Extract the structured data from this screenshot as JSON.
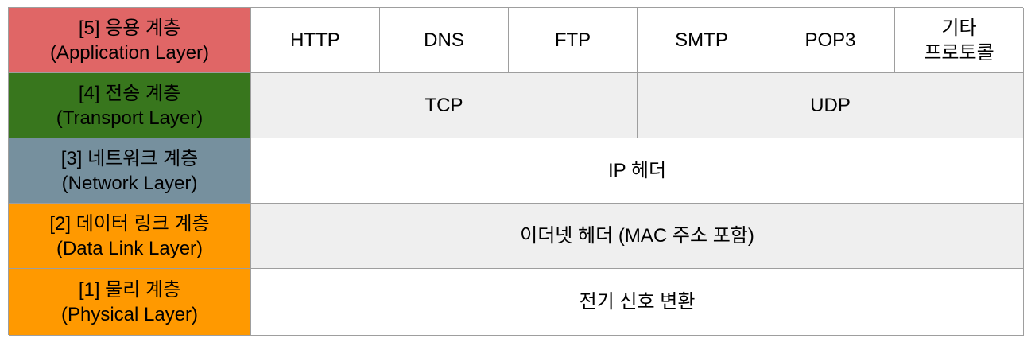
{
  "colors": {
    "application": "#e06666",
    "transport": "#38761d",
    "network": "#76909e",
    "datalink": "#ff9900",
    "physical": "#ff9900",
    "fill_white": "#ffffff",
    "fill_gray": "#efefef",
    "border": "#9e9e9e"
  },
  "layers": [
    {
      "id": "application",
      "title": "[5] 응용 계층",
      "subtitle": "(Application Layer)",
      "cells": [
        "HTTP",
        "DNS",
        "FTP",
        "SMTP",
        "POP3",
        "기타\n프로토콜"
      ]
    },
    {
      "id": "transport",
      "title": "[4] 전송 계층",
      "subtitle": "(Transport Layer)",
      "cells": [
        "TCP",
        "UDP"
      ]
    },
    {
      "id": "network",
      "title": "[3] 네트워크 계층",
      "subtitle": "(Network Layer)",
      "cells": [
        "IP 헤더"
      ]
    },
    {
      "id": "datalink",
      "title": "[2] 데이터 링크 계층",
      "subtitle": "(Data Link Layer)",
      "cells": [
        "이더넷 헤더 (MAC 주소 포함)"
      ]
    },
    {
      "id": "physical",
      "title": "[1] 물리 계층",
      "subtitle": "(Physical Layer)",
      "cells": [
        "전기 신호 변환"
      ]
    }
  ]
}
